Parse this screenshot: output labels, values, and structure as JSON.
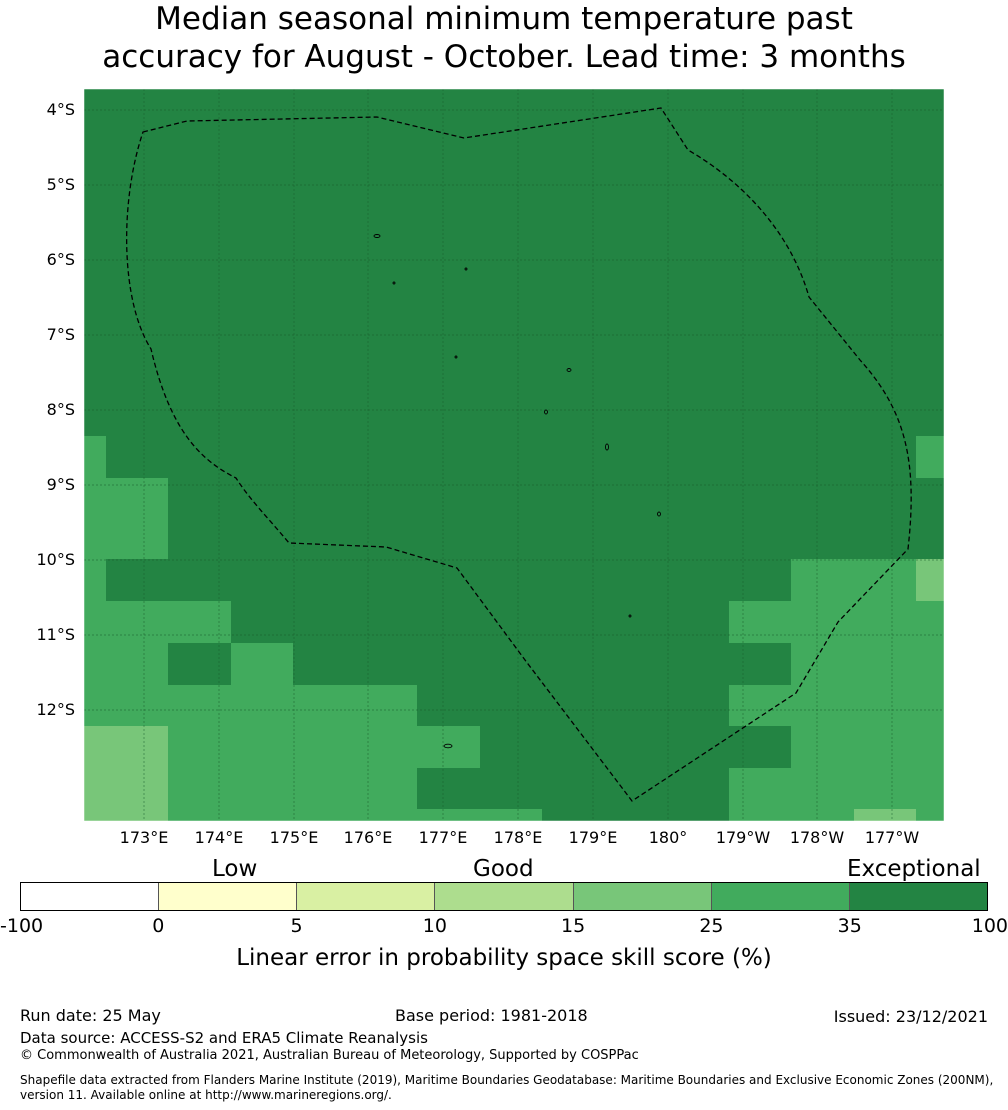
{
  "title": {
    "line1": "Median seasonal minimum temperature past",
    "line2": "accuracy for August - October. Lead time: 3 months"
  },
  "map": {
    "lat_labels": [
      "4°S",
      "5°S",
      "6°S",
      "7°S",
      "8°S",
      "9°S",
      "10°S",
      "11°S",
      "12°S"
    ],
    "lon_labels": [
      "173°E",
      "174°E",
      "175°E",
      "176°E",
      "177°E",
      "178°E",
      "179°E",
      "180°",
      "179°W",
      "178°W",
      "177°W"
    ],
    "boundary_style": "dashed",
    "gridlines": true
  },
  "legend": {
    "categories": [
      {
        "label": "Low"
      },
      {
        "label": "Good"
      },
      {
        "label": "Exceptional"
      }
    ],
    "ticks": [
      "-100",
      "0",
      "5",
      "10",
      "15",
      "25",
      "35",
      "100"
    ],
    "colors": [
      "#ffffff",
      "#ffffcc",
      "#d9f0a3",
      "#addd8e",
      "#78c679",
      "#41ab5d",
      "#238443"
    ],
    "label": "Linear error in probability space skill score (%)"
  },
  "footer": {
    "run_date": "Run date: 25 May",
    "base_period": "Base period: 1981-2018",
    "issued": "Issued: 23/12/2021",
    "data_source": "Data source: ACCESS-S2 and ERA5 Climate Reanalysis",
    "copyright": "© Commonwealth of Australia 2021, Australian Bureau of Meteorology, Supported by COSPPac",
    "shapefile_line1": "Shapefile data extracted from Flanders Marine Institute (2019), Maritime Boundaries Geodatabase: Maritime Boundaries and Exclusive Economic Zones (200NM),",
    "shapefile_line2": "version 11. Available online at http://www.marineregions.org/."
  }
}
